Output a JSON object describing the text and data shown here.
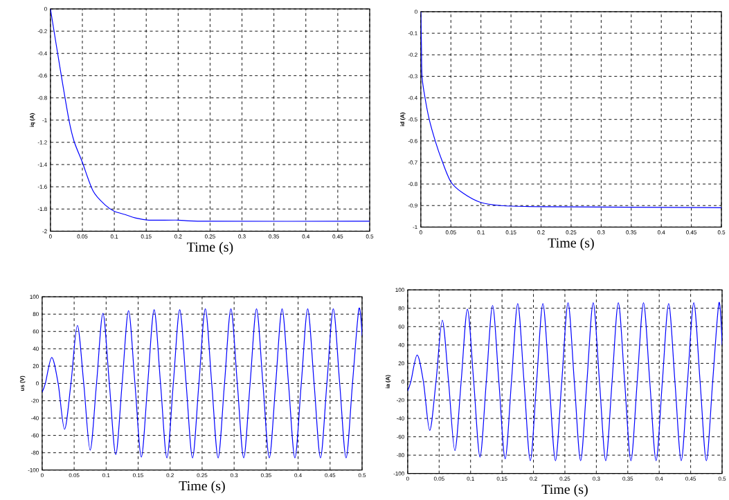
{
  "chart_data": [
    {
      "type": "line",
      "xlabel": "Time (s)",
      "ylabel": "iq (A)",
      "color": "#0000ff",
      "grid": true,
      "x": [
        0,
        0.017,
        0.029,
        0.037,
        0.05,
        0.067,
        0.087,
        0.1,
        0.117,
        0.133,
        0.154,
        0.2,
        0.25,
        0.5
      ],
      "values": [
        0,
        -0.6,
        -1.0,
        -1.19,
        -1.38,
        -1.64,
        -1.77,
        -1.82,
        -1.85,
        -1.88,
        -1.9,
        -1.9,
        -1.91,
        -1.91
      ],
      "xlim": [
        0,
        0.5
      ],
      "ylim": [
        -2,
        0
      ],
      "xticks": [
        0,
        0.05,
        0.1,
        0.15,
        0.2,
        0.25,
        0.3,
        0.35,
        0.4,
        0.45,
        0.5
      ],
      "yticks": [
        -2,
        -1.8,
        -1.6,
        -1.4,
        -1.2,
        -1,
        -0.8,
        -0.6,
        -0.4,
        -0.2,
        0
      ]
    },
    {
      "type": "line",
      "xlabel": "Time (s)",
      "ylabel": "id (A)",
      "color": "#0000ff",
      "grid": true,
      "x": [
        0,
        0.001,
        0.002,
        0.007,
        0.014,
        0.024,
        0.035,
        0.05,
        0.069,
        0.099,
        0.133,
        0.2,
        0.5
      ],
      "values": [
        0,
        -0.15,
        -0.3,
        -0.4,
        -0.5,
        -0.6,
        -0.69,
        -0.79,
        -0.84,
        -0.885,
        -0.9,
        -0.905,
        -0.91
      ],
      "xlim": [
        0,
        0.5
      ],
      "ylim": [
        -1,
        0
      ],
      "xticks": [
        0,
        0.05,
        0.1,
        0.15,
        0.2,
        0.25,
        0.3,
        0.35,
        0.4,
        0.45,
        0.5
      ],
      "yticks": [
        -1,
        -0.9,
        -0.8,
        -0.7,
        -0.6,
        -0.5,
        -0.4,
        -0.3,
        -0.2,
        -0.1,
        0
      ]
    },
    {
      "type": "line",
      "xlabel": "Time (s)",
      "ylabel": "us (V)",
      "color": "#0000ff",
      "grid": true,
      "x": [
        0,
        0.005,
        0.015,
        0.025,
        0.035,
        0.045,
        0.055,
        0.065,
        0.075,
        0.085,
        0.095,
        0.105,
        0.115,
        0.125,
        0.135,
        0.145,
        0.155,
        0.165,
        0.175,
        0.185,
        0.195,
        0.205,
        0.215,
        0.225,
        0.235,
        0.245,
        0.255,
        0.265,
        0.275,
        0.285,
        0.295,
        0.305,
        0.315,
        0.325,
        0.335,
        0.345,
        0.355,
        0.365,
        0.375,
        0.385,
        0.395,
        0.405,
        0.415,
        0.425,
        0.435,
        0.445,
        0.455,
        0.465,
        0.475,
        0.485,
        0.495,
        0.5
      ],
      "values": [
        -10,
        0,
        30,
        0,
        -53,
        0,
        67,
        0,
        -77,
        0,
        81,
        0,
        -82,
        0,
        84,
        0,
        -85,
        0,
        85,
        0,
        -86,
        0,
        85,
        0,
        -86,
        0,
        86,
        0,
        -86,
        0,
        86,
        0,
        -86,
        0,
        86,
        0,
        -86,
        0,
        86,
        0,
        -86,
        0,
        86,
        0,
        -86,
        0,
        86,
        0,
        -86,
        0,
        86,
        55
      ],
      "xlim": [
        0,
        0.5
      ],
      "ylim": [
        -100,
        100
      ],
      "xticks": [
        0,
        0.05,
        0.1,
        0.15,
        0.2,
        0.25,
        0.3,
        0.35,
        0.4,
        0.45,
        0.5
      ],
      "yticks": [
        -100,
        -80,
        -60,
        -40,
        -20,
        0,
        20,
        40,
        60,
        80,
        100
      ]
    },
    {
      "type": "line",
      "xlabel": "Time (s)",
      "ylabel": "ia (A)",
      "color": "#0000ff",
      "grid": true,
      "x": [
        0,
        0.005,
        0.015,
        0.025,
        0.035,
        0.045,
        0.055,
        0.065,
        0.075,
        0.085,
        0.095,
        0.105,
        0.115,
        0.125,
        0.135,
        0.145,
        0.155,
        0.165,
        0.175,
        0.185,
        0.195,
        0.205,
        0.215,
        0.225,
        0.235,
        0.245,
        0.255,
        0.265,
        0.275,
        0.285,
        0.295,
        0.305,
        0.315,
        0.325,
        0.335,
        0.345,
        0.355,
        0.365,
        0.375,
        0.385,
        0.395,
        0.405,
        0.415,
        0.425,
        0.435,
        0.445,
        0.455,
        0.465,
        0.475,
        0.485,
        0.495,
        0.5
      ],
      "values": [
        -10,
        0,
        29,
        0,
        -53,
        0,
        67,
        0,
        -75,
        0,
        79,
        0,
        -82,
        0,
        83,
        0,
        -84,
        0,
        85,
        0,
        -86,
        0,
        85,
        0,
        -86,
        0,
        86,
        0,
        -86,
        0,
        86,
        0,
        -86,
        0,
        86,
        0,
        -86,
        0,
        86,
        0,
        -86,
        0,
        85,
        0,
        -86,
        0,
        86,
        0,
        -86,
        0,
        86,
        40
      ],
      "xlim": [
        0,
        0.5
      ],
      "ylim": [
        -100,
        100
      ],
      "xticks": [
        0,
        0.05,
        0.1,
        0.15,
        0.2,
        0.25,
        0.3,
        0.35,
        0.4,
        0.45,
        0.5
      ],
      "yticks": [
        -100,
        -80,
        -60,
        -40,
        -20,
        0,
        20,
        40,
        60,
        80,
        100
      ]
    }
  ]
}
